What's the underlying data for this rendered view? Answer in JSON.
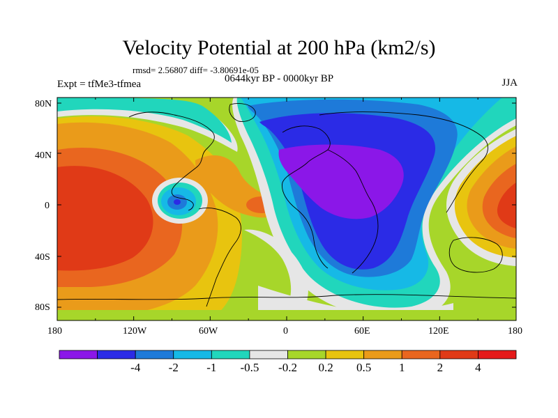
{
  "title": "Velocity Potential at 200 hPa (km2/s)",
  "stats": "rmsd= 2.56807  diff= -3.80691e-05",
  "period": "0644kyr BP - 0000kyr BP",
  "experiment": "Expt = tfMe3-tfmea",
  "season": "JJA",
  "lon_ticks": [
    "180",
    "120W",
    "60W",
    "0",
    "60E",
    "120E",
    "180"
  ],
  "lat_ticks": [
    "80N",
    "40N",
    "0",
    "40S",
    "80S"
  ],
  "colorbar": {
    "colors": [
      "#8b17e8",
      "#2b2be6",
      "#1e7ad9",
      "#16b9e6",
      "#21d6bc",
      "#e6e6e6",
      "#a7d62a",
      "#e8c40f",
      "#ea9b1a",
      "#e9661f",
      "#e03a17",
      "#e51a1a"
    ],
    "labels": [
      "-4",
      "-2",
      "-1",
      "-0.5",
      "-0.2",
      "0.2",
      "0.5",
      "1",
      "2",
      "4"
    ]
  }
}
